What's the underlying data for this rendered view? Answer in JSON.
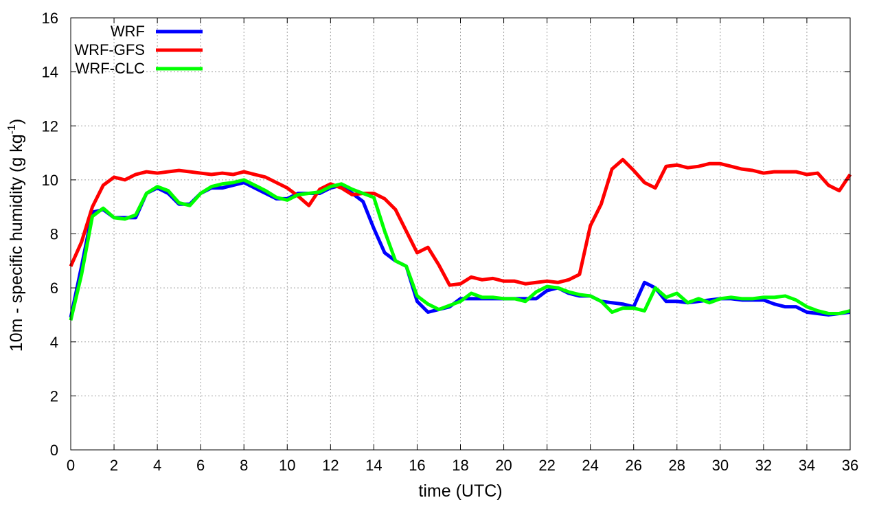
{
  "chart_data": {
    "type": "line",
    "xlabel": "time (UTC)",
    "ylabel": "10m - specific humidity (g kg",
    "ylabel_sup": "-1",
    "ylabel_suffix": ")",
    "xlim": [
      0,
      36
    ],
    "ylim": [
      0,
      16
    ],
    "xticks": [
      "0",
      "2",
      "4",
      "6",
      "8",
      "10",
      "12",
      "14",
      "16",
      "18",
      "20",
      "22",
      "24",
      "26",
      "28",
      "30",
      "32",
      "34",
      "36"
    ],
    "yticks": [
      "0",
      "2",
      "4",
      "6",
      "8",
      "10",
      "12",
      "14",
      "16"
    ],
    "grid": true,
    "legend_position": "top-left",
    "x": [
      0,
      0.5,
      1,
      1.5,
      2,
      2.5,
      3,
      3.5,
      4,
      4.5,
      5,
      5.5,
      6,
      6.5,
      7,
      7.5,
      8,
      8.5,
      9,
      9.5,
      10,
      10.5,
      11,
      11.5,
      12,
      12.5,
      13,
      13.5,
      14,
      14.5,
      15,
      15.5,
      16,
      16.5,
      17,
      17.5,
      18,
      18.5,
      19,
      19.5,
      20,
      20.5,
      21,
      21.5,
      22,
      22.5,
      23,
      23.5,
      24,
      24.5,
      25,
      25.5,
      26,
      26.5,
      27,
      27.5,
      28,
      28.5,
      29,
      29.5,
      30,
      30.5,
      31,
      31.5,
      32,
      32.5,
      33,
      33.5,
      34,
      34.5,
      35,
      35.5,
      36
    ],
    "series": [
      {
        "name": "WRF",
        "color": "#0000ff",
        "values": [
          4.9,
          6.8,
          8.8,
          8.9,
          8.6,
          8.6,
          8.6,
          9.5,
          9.7,
          9.5,
          9.1,
          9.1,
          9.5,
          9.7,
          9.7,
          9.8,
          9.9,
          9.7,
          9.5,
          9.3,
          9.3,
          9.5,
          9.5,
          9.5,
          9.7,
          9.8,
          9.5,
          9.2,
          8.2,
          7.3,
          7.0,
          6.8,
          5.5,
          5.1,
          5.2,
          5.3,
          5.6,
          5.6,
          5.6,
          5.6,
          5.6,
          5.6,
          5.6,
          5.6,
          5.9,
          6.0,
          5.8,
          5.7,
          5.7,
          5.5,
          5.45,
          5.4,
          5.3,
          6.2,
          6.0,
          5.5,
          5.5,
          5.45,
          5.5,
          5.55,
          5.6,
          5.6,
          5.55,
          5.55,
          5.55,
          5.4,
          5.3,
          5.3,
          5.1,
          5.05,
          5.0,
          5.05,
          5.1
        ]
      },
      {
        "name": "WRF-GFS",
        "color": "#ff0000",
        "values": [
          6.8,
          7.7,
          9.0,
          9.8,
          10.1,
          10.0,
          10.2,
          10.3,
          10.25,
          10.3,
          10.35,
          10.3,
          10.25,
          10.2,
          10.25,
          10.2,
          10.3,
          10.2,
          10.1,
          9.9,
          9.7,
          9.4,
          9.05,
          9.65,
          9.85,
          9.7,
          9.45,
          9.5,
          9.5,
          9.3,
          8.9,
          8.1,
          7.3,
          7.5,
          6.85,
          6.1,
          6.15,
          6.4,
          6.3,
          6.35,
          6.25,
          6.25,
          6.15,
          6.2,
          6.25,
          6.2,
          6.3,
          6.5,
          8.3,
          9.1,
          10.4,
          10.75,
          10.35,
          9.9,
          9.7,
          10.5,
          10.55,
          10.45,
          10.5,
          10.6,
          10.6,
          10.5,
          10.4,
          10.35,
          10.25,
          10.3,
          10.3,
          10.3,
          10.2,
          10.25,
          9.8,
          9.6,
          10.2
        ]
      },
      {
        "name": "WRF-CLC",
        "color": "#00ff00",
        "values": [
          4.8,
          6.5,
          8.65,
          8.95,
          8.6,
          8.55,
          8.7,
          9.5,
          9.75,
          9.6,
          9.15,
          9.05,
          9.5,
          9.75,
          9.85,
          9.9,
          10.0,
          9.8,
          9.6,
          9.35,
          9.25,
          9.45,
          9.5,
          9.55,
          9.75,
          9.85,
          9.65,
          9.5,
          9.35,
          8.1,
          7.0,
          6.8,
          5.7,
          5.4,
          5.2,
          5.35,
          5.5,
          5.8,
          5.65,
          5.65,
          5.6,
          5.6,
          5.5,
          5.85,
          6.05,
          6.0,
          5.85,
          5.75,
          5.7,
          5.5,
          5.1,
          5.25,
          5.25,
          5.15,
          6.0,
          5.65,
          5.8,
          5.45,
          5.6,
          5.45,
          5.6,
          5.65,
          5.6,
          5.6,
          5.65,
          5.65,
          5.7,
          5.55,
          5.3,
          5.15,
          5.05,
          5.05,
          5.15
        ]
      }
    ]
  }
}
